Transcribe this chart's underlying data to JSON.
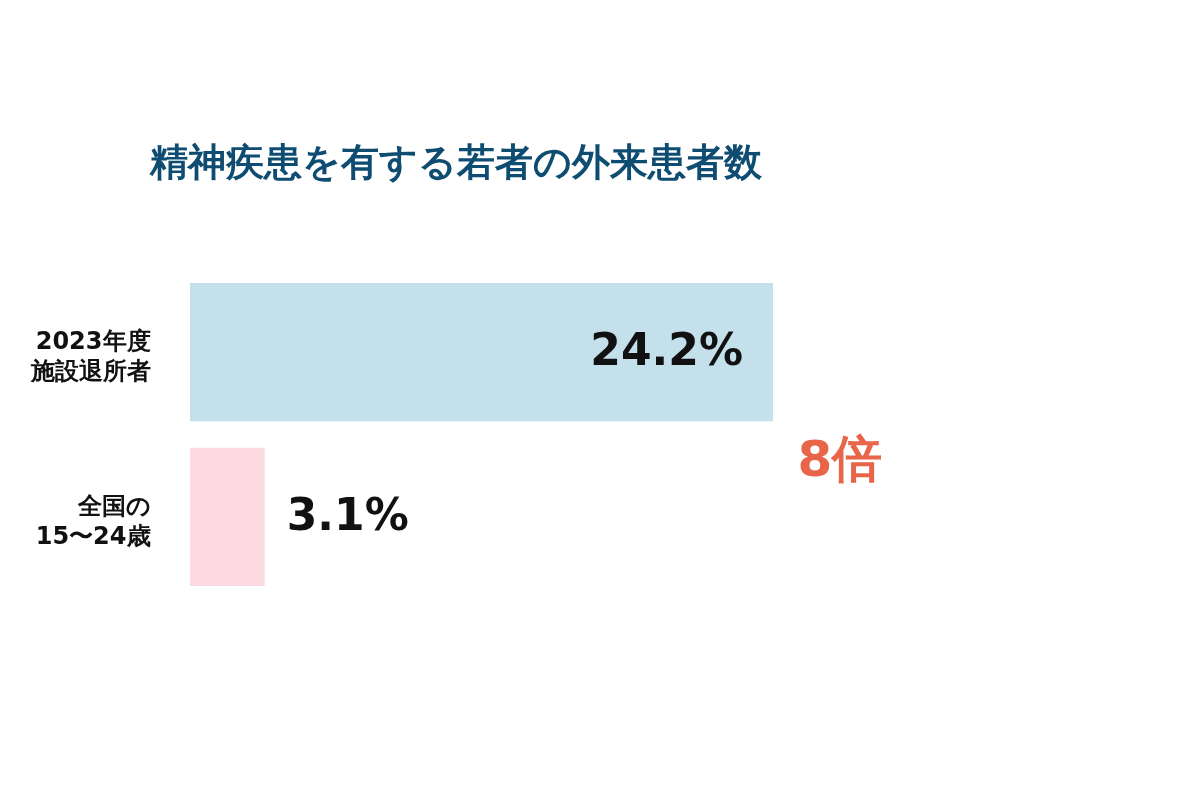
{
  "chart_data": {
    "type": "bar",
    "orientation": "horizontal",
    "title": "精神疾患を有する若者の外来患者数",
    "categories": [
      "2023年度施設退所者",
      "全国の15〜24歳"
    ],
    "values": [
      24.2,
      3.1
    ],
    "colors": [
      "#c3e0eb",
      "#fdd9e1"
    ],
    "value_labels": [
      "24.2%",
      "3.1%"
    ],
    "annotations": [
      "8倍"
    ]
  }
}
